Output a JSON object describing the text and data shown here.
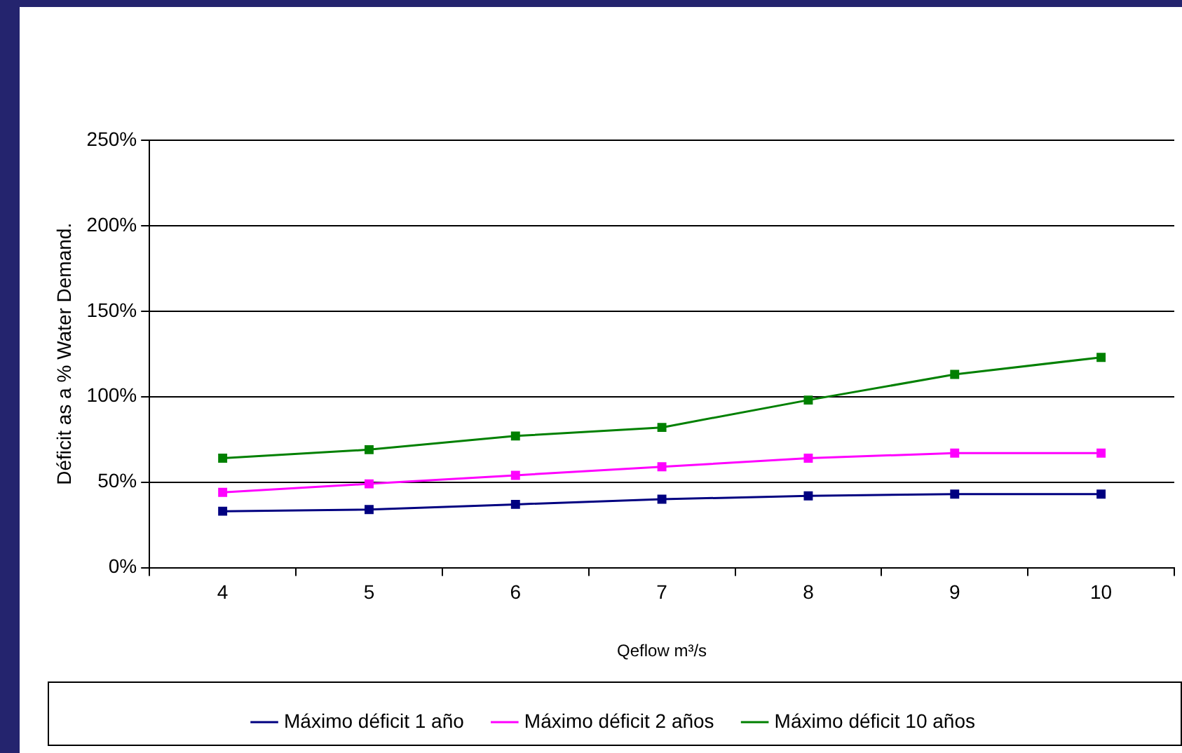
{
  "chart_data": {
    "type": "line",
    "xlabel": "Qeflow m³/s",
    "ylabel": "Déficit as a % Water Demand.",
    "categories": [
      "4",
      "5",
      "6",
      "7",
      "8",
      "9",
      "10"
    ],
    "series": [
      {
        "name": "Máximo déficit 1 año",
        "color": "#000080",
        "values": [
          33,
          34,
          37,
          40,
          42,
          43,
          43
        ]
      },
      {
        "name": "Máximo déficit 2 años",
        "color": "#ff00ff",
        "values": [
          44,
          49,
          54,
          59,
          64,
          67,
          67
        ]
      },
      {
        "name": "Máximo déficit 10 años",
        "color": "#008000",
        "values": [
          64,
          69,
          77,
          82,
          98,
          113,
          123
        ]
      }
    ],
    "ylim": [
      0,
      250
    ],
    "yticks": [
      {
        "value": 0,
        "label": "0%"
      },
      {
        "value": 50,
        "label": "50%"
      },
      {
        "value": 100,
        "label": "100%"
      },
      {
        "value": 150,
        "label": "150%"
      },
      {
        "value": 200,
        "label": "200%"
      },
      {
        "value": 250,
        "label": "250%"
      }
    ],
    "grid": "y",
    "legend": "bottom",
    "marker": "square",
    "line_style": "solid"
  }
}
